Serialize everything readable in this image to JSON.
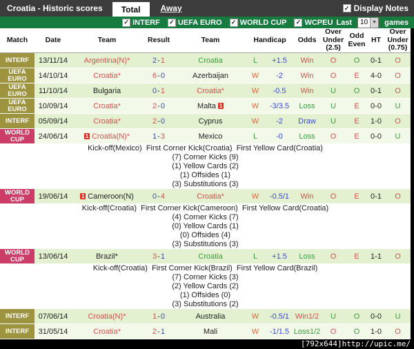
{
  "titlebar": {
    "title": "Croatia - Historic scores",
    "tabs": [
      {
        "label": "Total",
        "active": true
      },
      {
        "label": "Away",
        "active": false
      }
    ],
    "display_notes_label": "Display Notes"
  },
  "filterbar": {
    "checkboxes": [
      {
        "label": "INTERF",
        "checked": true
      },
      {
        "label": "UEFA EURO",
        "checked": true
      },
      {
        "label": "WORLD CUP",
        "checked": true
      },
      {
        "label": "WCPEU",
        "checked": true
      }
    ],
    "last_label": "Last",
    "games_count": "10",
    "games_label": "games",
    "check_glyph": "✓"
  },
  "table": {
    "headers": [
      "Match",
      "Date",
      "Team",
      "Result",
      "Team",
      "Handicap",
      "Odds",
      "Over Under (2.5)",
      "Odd Even",
      "HT",
      "Over Under (0.75)"
    ],
    "rows": [
      {
        "league": "INTERF",
        "lc": "olive",
        "date": "13/11/14",
        "home": {
          "name": "Argentina(N)*",
          "color": "red",
          "rcb": "",
          "rca": ""
        },
        "sh": "2",
        "shc": "navy",
        "sa": "1",
        "sac": "red",
        "away": {
          "name": "Croatia",
          "color": "green",
          "rcb": "",
          "rca": ""
        },
        "wl": "L",
        "wlc": "green",
        "hcap": "+1.5",
        "odds": "Win",
        "oc": "red",
        "ou25": "O",
        "ou25c": "red",
        "oe": "O",
        "oec": "green",
        "ht": "0-1",
        "ou075": "O",
        "ou075c": "red",
        "shade": "d"
      },
      {
        "league": "UEFA EURO",
        "lc": "olive",
        "date": "14/10/14",
        "home": {
          "name": "Croatia*",
          "color": "red",
          "rcb": "",
          "rca": ""
        },
        "sh": "6",
        "shc": "red",
        "sa": "0",
        "sac": "navy",
        "away": {
          "name": "Azerbaijan",
          "color": "black",
          "rcb": "",
          "rca": ""
        },
        "wl": "W",
        "wlc": "orange",
        "hcap": "-2",
        "odds": "Win",
        "oc": "red",
        "ou25": "O",
        "ou25c": "red",
        "oe": "E",
        "oec": "red",
        "ht": "4-0",
        "ou075": "O",
        "ou075c": "red",
        "shade": "l"
      },
      {
        "league": "UEFA EURO",
        "lc": "olive",
        "date": "11/10/14",
        "home": {
          "name": "Bulgaria",
          "color": "black",
          "rcb": "",
          "rca": ""
        },
        "sh": "0",
        "shc": "navy",
        "sa": "1",
        "sac": "red",
        "away": {
          "name": "Croatia*",
          "color": "red",
          "rcb": "",
          "rca": ""
        },
        "wl": "W",
        "wlc": "orange",
        "hcap": "-0.5",
        "odds": "Win",
        "oc": "red",
        "ou25": "U",
        "ou25c": "green",
        "oe": "O",
        "oec": "green",
        "ht": "0-1",
        "ou075": "O",
        "ou075c": "red",
        "shade": "d"
      },
      {
        "league": "UEFA EURO",
        "lc": "olive",
        "date": "10/09/14",
        "home": {
          "name": "Croatia*",
          "color": "red",
          "rcb": "",
          "rca": ""
        },
        "sh": "2",
        "shc": "red",
        "sa": "0",
        "sac": "navy",
        "away": {
          "name": "Malta",
          "color": "black",
          "rcb": "",
          "rca": "1"
        },
        "wl": "W",
        "wlc": "orange",
        "hcap": "-3/3.5",
        "odds": "Loss",
        "oc": "green",
        "ou25": "U",
        "ou25c": "green",
        "oe": "E",
        "oec": "red",
        "ht": "0-0",
        "ou075": "U",
        "ou075c": "green",
        "shade": "l"
      },
      {
        "league": "INTERF",
        "lc": "olive",
        "date": "05/09/14",
        "home": {
          "name": "Croatia*",
          "color": "red",
          "rcb": "",
          "rca": ""
        },
        "sh": "2",
        "shc": "red",
        "sa": "0",
        "sac": "navy",
        "away": {
          "name": "Cyprus",
          "color": "black",
          "rcb": "",
          "rca": ""
        },
        "wl": "W",
        "wlc": "orange",
        "hcap": "-2",
        "odds": "Draw",
        "oc": "blue",
        "ou25": "U",
        "ou25c": "green",
        "oe": "E",
        "oec": "red",
        "ht": "1-0",
        "ou075": "O",
        "ou075c": "red",
        "shade": "d"
      },
      {
        "league": "WORLD CUP",
        "lc": "pink",
        "date": "24/06/14",
        "home": {
          "name": "Croatia(N)*",
          "color": "red",
          "rcb": "1",
          "rca": ""
        },
        "sh": "1",
        "shc": "navy",
        "sa": "3",
        "sac": "red",
        "away": {
          "name": "Mexico",
          "color": "black",
          "rcb": "",
          "rca": ""
        },
        "wl": "L",
        "wlc": "green",
        "hcap": "-0",
        "odds": "Loss",
        "oc": "green",
        "ou25": "O",
        "ou25c": "red",
        "oe": "E",
        "oec": "red",
        "ht": "0-0",
        "ou075": "U",
        "ou075c": "green",
        "shade": "l",
        "notes": {
          "header": "Kick-off(Mexico)  First Corner Kick(Croatia)  First Yellow Card(Croatia)",
          "lines": [
            "(7) Corner Kicks (9)",
            "(1) Yellow Cards (2)",
            "(1) Offsides (1)",
            "(3) Substitutions (3)"
          ]
        }
      },
      {
        "league": "WORLD CUP",
        "lc": "pink",
        "date": "19/06/14",
        "home": {
          "name": "Cameroon(N)",
          "color": "black",
          "rcb": "1",
          "rca": ""
        },
        "sh": "0",
        "shc": "navy",
        "sa": "4",
        "sac": "red",
        "away": {
          "name": "Croatia*",
          "color": "red",
          "rcb": "",
          "rca": ""
        },
        "wl": "W",
        "wlc": "orange",
        "hcap": "-0.5/1",
        "odds": "Win",
        "oc": "red",
        "ou25": "O",
        "ou25c": "red",
        "oe": "E",
        "oec": "red",
        "ht": "0-1",
        "ou075": "O",
        "ou075c": "red",
        "shade": "d",
        "notes": {
          "header": "Kick-off(Croatia)  First Corner Kick(Cameroon)  First Yellow Card(Croatia)",
          "lines": [
            "(4) Corner Kicks (7)",
            "(0) Yellow Cards (1)",
            "(0) Offsides (4)",
            "(3) Substitutions (3)"
          ]
        }
      },
      {
        "league": "WORLD CUP",
        "lc": "pink",
        "date": "13/06/14",
        "home": {
          "name": "Brazil*",
          "color": "black",
          "rcb": "",
          "rca": ""
        },
        "sh": "3",
        "shc": "red",
        "sa": "1",
        "sac": "navy",
        "away": {
          "name": "Croatia",
          "color": "green",
          "rcb": "",
          "rca": ""
        },
        "wl": "L",
        "wlc": "green",
        "hcap": "+1.5",
        "odds": "Loss",
        "oc": "green",
        "ou25": "O",
        "ou25c": "red",
        "oe": "E",
        "oec": "red",
        "ht": "1-1",
        "ou075": "O",
        "ou075c": "red",
        "shade": "d",
        "notes": {
          "header": "Kick-off(Croatia)  First Corner Kick(Brazil)  First Yellow Card(Brazil)",
          "lines": [
            "(7) Corner Kicks (3)",
            "(2) Yellow Cards (2)",
            "(1) Offsides (0)",
            "(3) Substitutions (2)"
          ]
        }
      },
      {
        "league": "INTERF",
        "lc": "olive",
        "date": "07/06/14",
        "home": {
          "name": "Croatia(N)*",
          "color": "red",
          "rcb": "",
          "rca": ""
        },
        "sh": "1",
        "shc": "red",
        "sa": "0",
        "sac": "navy",
        "away": {
          "name": "Australia",
          "color": "black",
          "rcb": "",
          "rca": ""
        },
        "wl": "W",
        "wlc": "orange",
        "hcap": "-0.5/1",
        "odds": "Win1/2",
        "oc": "red",
        "ou25": "U",
        "ou25c": "green",
        "oe": "O",
        "oec": "green",
        "ht": "0-0",
        "ou075": "U",
        "ou075c": "green",
        "shade": "d"
      },
      {
        "league": "INTERF",
        "lc": "olive",
        "date": "31/05/14",
        "home": {
          "name": "Croatia*",
          "color": "red",
          "rcb": "",
          "rca": ""
        },
        "sh": "2",
        "shc": "red",
        "sa": "1",
        "sac": "navy",
        "away": {
          "name": "Mali",
          "color": "black",
          "rcb": "",
          "rca": ""
        },
        "wl": "W",
        "wlc": "orange",
        "hcap": "-1/1.5",
        "odds": "Loss1/2",
        "oc": "green",
        "ou25": "O",
        "ou25c": "red",
        "oe": "O",
        "oec": "green",
        "ht": "1-0",
        "ou075": "O",
        "ou075c": "red",
        "shade": "l"
      }
    ]
  },
  "watermark": "[792x644]http://upic.me/",
  "colors": {
    "topbar_bg": "#3c3c3c",
    "filterbar_green": "#177a3e",
    "badge_olive": "#9e9440",
    "badge_pink": "#cb3c67",
    "row_dark": "#e3f1d0",
    "row_light": "#f2f9e8",
    "text_red": "#d4504e",
    "text_green": "#3c9a3c",
    "text_blue": "#3849d6",
    "text_navy": "#3a4aa8",
    "text_orange": "#e0693a",
    "redcard": "#e03020"
  }
}
